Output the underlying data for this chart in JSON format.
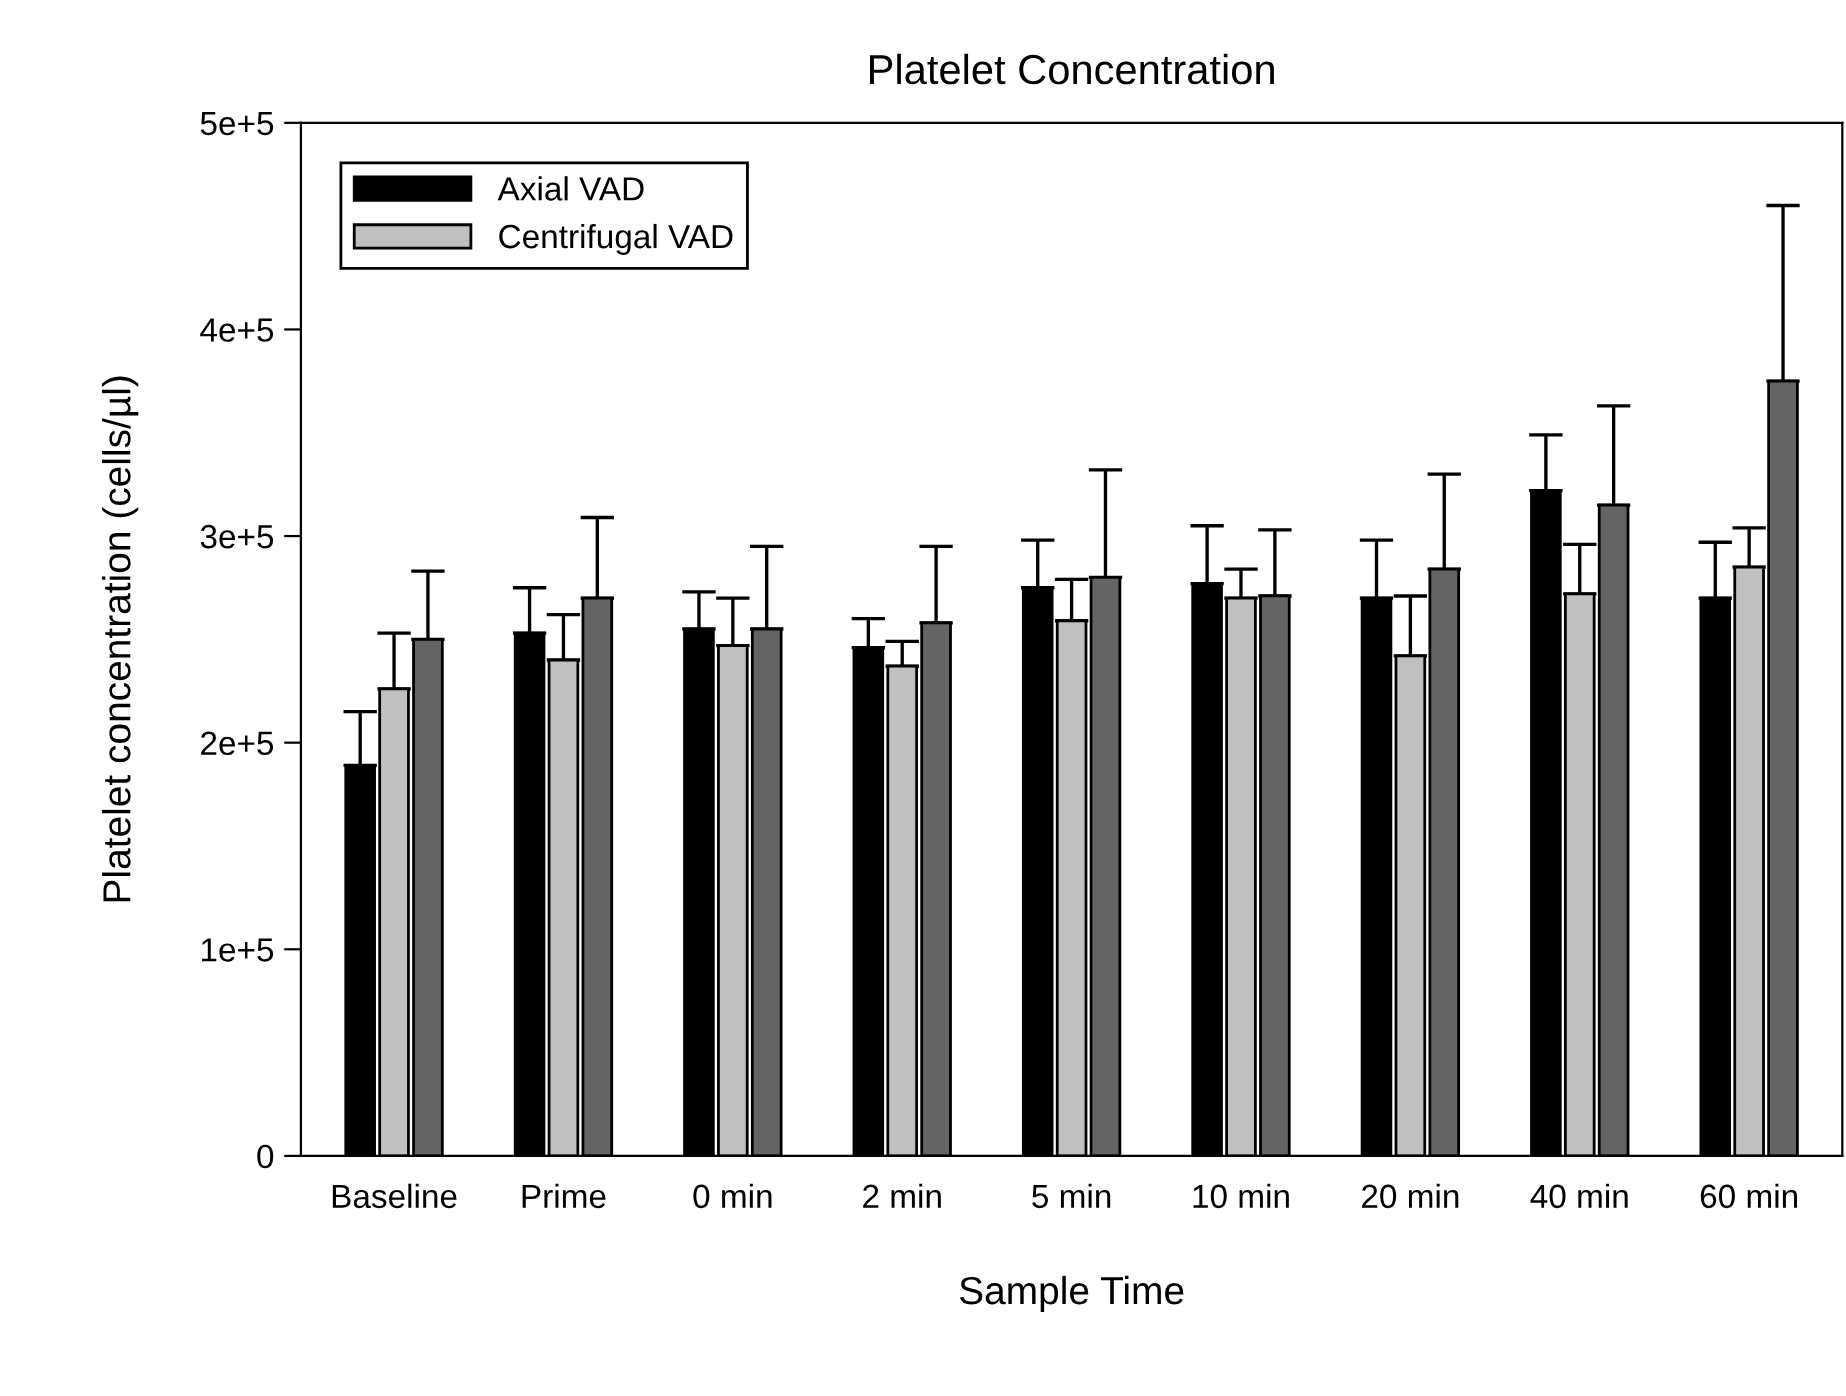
{
  "chart_data": {
    "type": "bar",
    "title": "Platelet Concentration",
    "xlabel": "Sample Time",
    "ylabel": "Platelet concentration (cells/µl)",
    "categories": [
      "Baseline",
      "Prime",
      "0 min",
      "2 min",
      "5 min",
      "10 min",
      "20 min",
      "40 min",
      "60 min"
    ],
    "series": [
      {
        "name": "Axial VAD",
        "color": "#000000",
        "values": [
          189000,
          253000,
          255000,
          246000,
          275000,
          277000,
          270000,
          322000,
          270000
        ],
        "errors": [
          [
            189000,
            215000
          ],
          [
            253000,
            275000
          ],
          [
            255000,
            273000
          ],
          [
            246000,
            260000
          ],
          [
            275000,
            298000
          ],
          [
            277000,
            305000
          ],
          [
            270000,
            298000
          ],
          [
            322000,
            349000
          ],
          [
            270000,
            297000
          ]
        ]
      },
      {
        "name": "Centrifugal VAD",
        "color": "#c0c0c0",
        "values": [
          226000,
          240000,
          247000,
          237000,
          259000,
          270000,
          242000,
          272000,
          285000
        ],
        "errors": [
          [
            226000,
            253000
          ],
          [
            240000,
            262000
          ],
          [
            247000,
            270000
          ],
          [
            237000,
            249000
          ],
          [
            259000,
            279000
          ],
          [
            270000,
            284000
          ],
          [
            242000,
            271000
          ],
          [
            272000,
            296000
          ],
          [
            285000,
            304000
          ]
        ]
      },
      {
        "color": "#646464",
        "values": [
          250000,
          270000,
          255000,
          258000,
          280000,
          271000,
          284000,
          315000,
          375000
        ],
        "errors": [
          [
            250000,
            283000
          ],
          [
            270000,
            309000
          ],
          [
            255000,
            295000
          ],
          [
            258000,
            295000
          ],
          [
            280000,
            332000
          ],
          [
            271000,
            303000
          ],
          [
            284000,
            330000
          ],
          [
            315000,
            363000
          ],
          [
            375000,
            460000
          ]
        ]
      }
    ],
    "ylim": [
      0,
      500000
    ],
    "yticks": [
      0,
      {
        "value": 100000,
        "label": "1e+5"
      },
      {
        "value": 200000,
        "label": "2e+5"
      },
      {
        "value": 300000,
        "label": "3e+5"
      },
      {
        "value": 400000,
        "label": "4e+5"
      },
      {
        "value": 500000,
        "label": "5e+5"
      }
    ],
    "grid": false,
    "legend": "top left"
  }
}
